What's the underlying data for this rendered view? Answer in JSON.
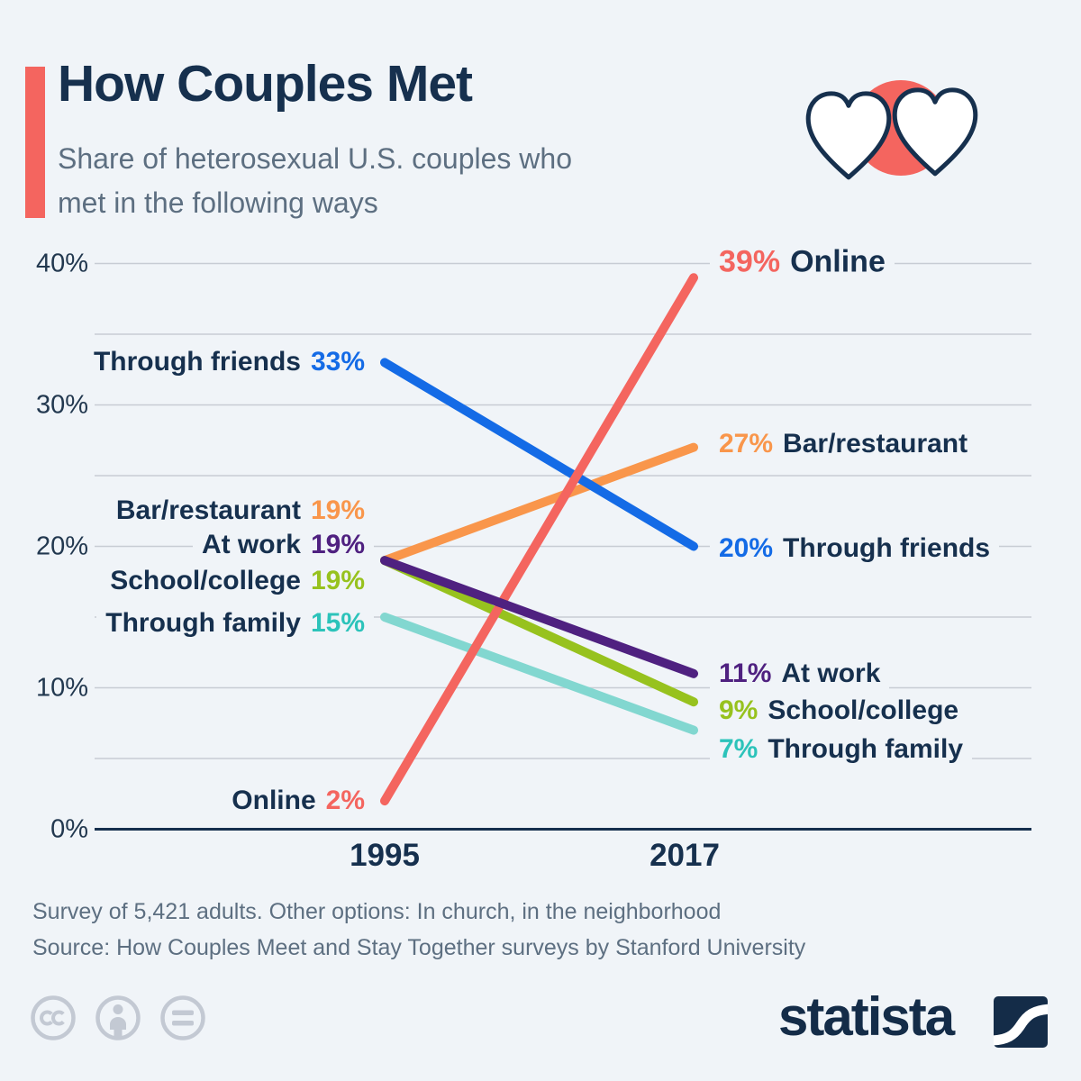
{
  "header": {
    "title": "How Couples Met",
    "subtitle": "Share of heterosexual U.S. couples who met in the following ways",
    "accent_color": "#f4655f"
  },
  "chart_data": {
    "type": "line",
    "variant": "slope",
    "x_labels": [
      "1995",
      "2017"
    ],
    "ylim": [
      0,
      40
    ],
    "grid_step": 5,
    "grid": true,
    "ytick_values": [
      0,
      10,
      20,
      30,
      40
    ],
    "ytick_labels": [
      "0%",
      "10%",
      "20%",
      "30%",
      "40%"
    ],
    "series": [
      {
        "name": "Online",
        "values": [
          2,
          39
        ],
        "start_label": "2%",
        "end_label": "39%",
        "color": "#f4655f"
      },
      {
        "name": "Bar/restaurant",
        "values": [
          19,
          27
        ],
        "start_label": "19%",
        "end_label": "27%",
        "color": "#f9964b"
      },
      {
        "name": "Through friends",
        "values": [
          33,
          20
        ],
        "start_label": "33%",
        "end_label": "20%",
        "color": "#146be6"
      },
      {
        "name": "At work",
        "values": [
          19,
          11
        ],
        "start_label": "19%",
        "end_label": "11%",
        "color": "#4f2180"
      },
      {
        "name": "School/college",
        "values": [
          19,
          9
        ],
        "start_label": "19%",
        "end_label": "9%",
        "color": "#97c21e"
      },
      {
        "name": "Through family",
        "values": [
          15,
          7
        ],
        "start_label": "15%",
        "end_label": "7%",
        "color": "#82d7d0",
        "value_text_color": "#2cc3ba"
      }
    ]
  },
  "footer": {
    "note": "Survey of 5,421 adults. Other options: In church, in the neighborhood",
    "source": "Source: How Couples Meet and Stay Together surveys by Stanford University",
    "brand": "statista"
  }
}
